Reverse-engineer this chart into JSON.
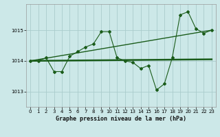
{
  "title": "Graphe pression niveau de la mer (hPa)",
  "bg_color": "#cce8e8",
  "line_color": "#1a5c1a",
  "grid_color": "#aacccc",
  "xlim": [
    -0.5,
    23.5
  ],
  "ylim": [
    1012.5,
    1015.85
  ],
  "yticks": [
    1013,
    1014,
    1015
  ],
  "xticks": [
    0,
    1,
    2,
    3,
    4,
    5,
    6,
    7,
    8,
    9,
    10,
    11,
    12,
    13,
    14,
    15,
    16,
    17,
    18,
    19,
    20,
    21,
    22,
    23
  ],
  "zigzag_x": [
    0,
    1,
    2,
    3,
    4,
    5,
    6,
    7,
    8,
    9,
    10,
    11,
    12,
    13,
    14,
    15,
    16,
    17,
    18,
    19,
    20,
    21,
    22,
    23
  ],
  "zigzag_y": [
    1014.0,
    1014.0,
    1014.1,
    1013.65,
    1013.65,
    1014.15,
    1014.3,
    1014.45,
    1014.55,
    1014.95,
    1014.95,
    1014.1,
    1014.0,
    1013.95,
    1013.75,
    1013.85,
    1013.05,
    1013.25,
    1014.1,
    1015.5,
    1015.6,
    1015.05,
    1014.9,
    1015.0
  ],
  "trend1_x": [
    0,
    23
  ],
  "trend1_y": [
    1014.0,
    1014.05
  ],
  "trend2_x": [
    0,
    23
  ],
  "trend2_y": [
    1014.0,
    1015.0
  ],
  "marker": "D",
  "marker_size": 2.0,
  "tick_fontsize": 5.0,
  "label_fontsize": 6.0
}
